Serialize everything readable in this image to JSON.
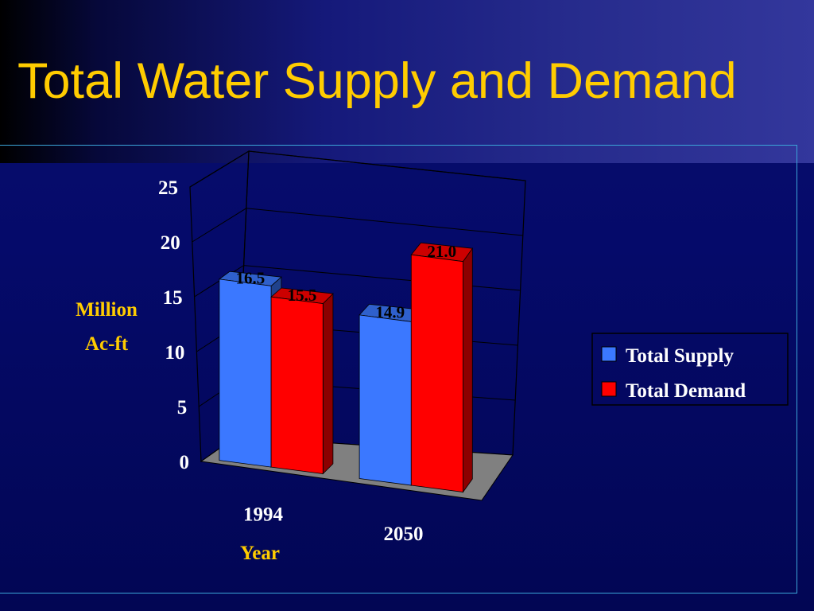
{
  "slide": {
    "title": "Total Water Supply and Demand"
  },
  "colors": {
    "title": "#ffcc00",
    "supply": "#3b78ff",
    "demand": "#ff0000",
    "axis_label": "#ffcc00",
    "tick_label": "#ffffff",
    "floor": "#808080"
  },
  "chart_data": {
    "type": "bar",
    "style": "3d-clustered",
    "categories": [
      "1994",
      "2050"
    ],
    "series": [
      {
        "name": "Total Supply",
        "values": [
          16.5,
          14.9
        ],
        "labels": [
          "16.5",
          "14.9"
        ]
      },
      {
        "name": "Total Demand",
        "values": [
          15.5,
          21.0
        ],
        "labels": [
          "15.5",
          "21.0"
        ]
      }
    ],
    "xlabel": "Year",
    "ylabel": [
      "Million",
      "Ac-ft"
    ],
    "ylim": [
      0,
      25
    ],
    "yticks": [
      0,
      5,
      10,
      15,
      20,
      25
    ],
    "ytick_labels": [
      "0",
      "5",
      "10",
      "15",
      "20",
      "25"
    ],
    "grid": true,
    "legend_position": "right"
  }
}
